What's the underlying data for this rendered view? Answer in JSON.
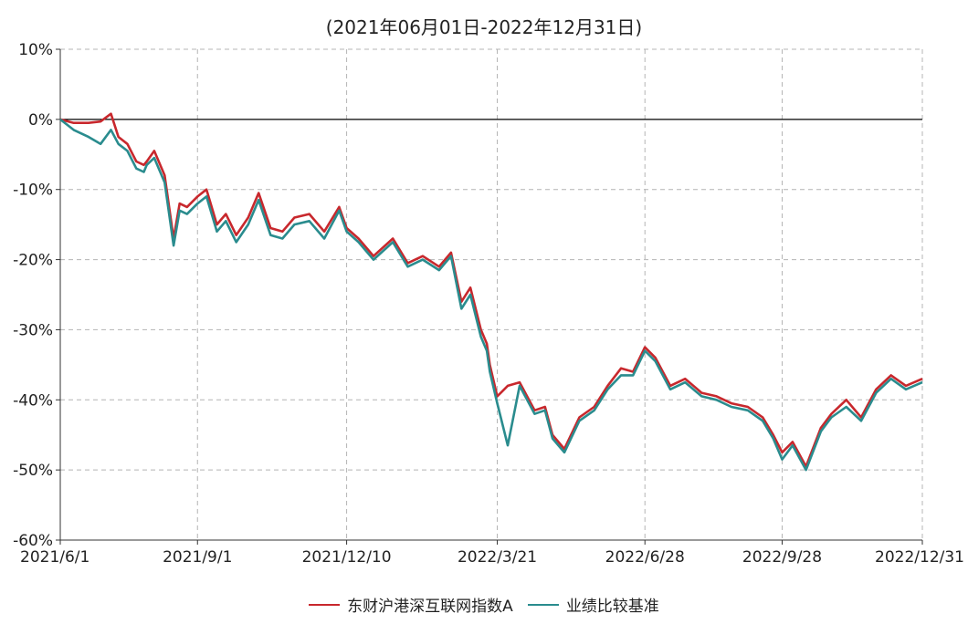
{
  "chart_data": {
    "type": "line",
    "title": "",
    "subtitle": "(2021年06月01日-2022年12月31日)",
    "xlabel": "",
    "ylabel": "",
    "x_ticks": [
      "2021/6/1",
      "2021/9/1",
      "2021/12/10",
      "2022/3/21",
      "2022/6/28",
      "2022/9/28",
      "2022/12/31"
    ],
    "y_ticks": [
      "10%",
      "0%",
      "-10%",
      "-20%",
      "-30%",
      "-40%",
      "-50%",
      "-60%"
    ],
    "ylim": [
      -60,
      10
    ],
    "grid": true,
    "legend_position": "bottom-center",
    "series": [
      {
        "name": "东财沪港深互联网指数A",
        "color": "#c8282d",
        "x": [
          "2021-06-01",
          "2021-06-10",
          "2021-06-20",
          "2021-06-28",
          "2021-07-05",
          "2021-07-10",
          "2021-07-16",
          "2021-07-22",
          "2021-07-27",
          "2021-07-29",
          "2021-08-03",
          "2021-08-10",
          "2021-08-16",
          "2021-08-20",
          "2021-08-25",
          "2021-09-01",
          "2021-09-07",
          "2021-09-14",
          "2021-09-20",
          "2021-09-27",
          "2021-10-05",
          "2021-10-12",
          "2021-10-20",
          "2021-10-28",
          "2021-11-05",
          "2021-11-15",
          "2021-11-25",
          "2021-12-05",
          "2021-12-10",
          "2021-12-18",
          "2021-12-28",
          "2022-01-10",
          "2022-01-20",
          "2022-01-30",
          "2022-02-10",
          "2022-02-18",
          "2022-02-25",
          "2022-03-03",
          "2022-03-10",
          "2022-03-14",
          "2022-03-16",
          "2022-03-21",
          "2022-03-28",
          "2022-04-05",
          "2022-04-15",
          "2022-04-22",
          "2022-04-27",
          "2022-05-05",
          "2022-05-15",
          "2022-05-25",
          "2022-06-03",
          "2022-06-12",
          "2022-06-20",
          "2022-06-28",
          "2022-07-05",
          "2022-07-15",
          "2022-07-25",
          "2022-08-05",
          "2022-08-15",
          "2022-08-25",
          "2022-09-05",
          "2022-09-15",
          "2022-09-22",
          "2022-09-28",
          "2022-10-05",
          "2022-10-14",
          "2022-10-24",
          "2022-10-31",
          "2022-11-10",
          "2022-11-20",
          "2022-11-30",
          "2022-12-10",
          "2022-12-20",
          "2022-12-31"
        ],
        "values": [
          0,
          -0.5,
          -0.5,
          -0.3,
          0.8,
          -2.5,
          -3.5,
          -6,
          -6.5,
          -6,
          -4.5,
          -8,
          -17,
          -12,
          -12.5,
          -11,
          -10,
          -15,
          -13.5,
          -16.5,
          -14,
          -10.5,
          -15.5,
          -16,
          -14,
          -13.5,
          -16,
          -12.5,
          -15.5,
          -17,
          -19.5,
          -17,
          -20.5,
          -19.5,
          -21,
          -19,
          -26,
          -24,
          -30,
          -32,
          -35,
          -39.5,
          -38,
          -37.5,
          -41.5,
          -41,
          -45,
          -47,
          -42.5,
          -41,
          -38,
          -35.5,
          -36,
          -32.5,
          -34,
          -38,
          -37,
          -39,
          -39.5,
          -40.5,
          -41,
          -42.5,
          -45,
          -47.5,
          -46,
          -49.5,
          -44,
          -42,
          -40,
          -42.5,
          -38.5,
          -36.5,
          -38,
          -37
        ]
      },
      {
        "name": "业绩比较基准",
        "color": "#2a8c8e",
        "x": [
          "2021-06-01",
          "2021-06-10",
          "2021-06-20",
          "2021-06-28",
          "2021-07-05",
          "2021-07-10",
          "2021-07-16",
          "2021-07-22",
          "2021-07-27",
          "2021-07-29",
          "2021-08-03",
          "2021-08-10",
          "2021-08-16",
          "2021-08-20",
          "2021-08-25",
          "2021-09-01",
          "2021-09-07",
          "2021-09-14",
          "2021-09-20",
          "2021-09-27",
          "2021-10-05",
          "2021-10-12",
          "2021-10-20",
          "2021-10-28",
          "2021-11-05",
          "2021-11-15",
          "2021-11-25",
          "2021-12-05",
          "2021-12-10",
          "2021-12-18",
          "2021-12-28",
          "2022-01-10",
          "2022-01-20",
          "2022-01-30",
          "2022-02-10",
          "2022-02-18",
          "2022-02-25",
          "2022-03-03",
          "2022-03-10",
          "2022-03-14",
          "2022-03-16",
          "2022-03-21",
          "2022-03-28",
          "2022-04-05",
          "2022-04-15",
          "2022-04-22",
          "2022-04-27",
          "2022-05-05",
          "2022-05-15",
          "2022-05-25",
          "2022-06-03",
          "2022-06-12",
          "2022-06-20",
          "2022-06-28",
          "2022-07-05",
          "2022-07-15",
          "2022-07-25",
          "2022-08-05",
          "2022-08-15",
          "2022-08-25",
          "2022-09-05",
          "2022-09-15",
          "2022-09-22",
          "2022-09-28",
          "2022-10-05",
          "2022-10-14",
          "2022-10-24",
          "2022-10-31",
          "2022-11-10",
          "2022-11-20",
          "2022-11-30",
          "2022-12-10",
          "2022-12-20",
          "2022-12-31"
        ],
        "values": [
          0,
          -1.5,
          -2.5,
          -3.5,
          -1.5,
          -3.5,
          -4.5,
          -7,
          -7.5,
          -6.5,
          -5.5,
          -9,
          -18,
          -13,
          -13.5,
          -12,
          -11,
          -16,
          -14.5,
          -17.5,
          -15,
          -11.5,
          -16.5,
          -17,
          -15,
          -14.5,
          -17,
          -13,
          -16,
          -17.5,
          -20,
          -17.5,
          -21,
          -20,
          -21.5,
          -19.5,
          -27,
          -25,
          -31,
          -33,
          -36,
          -40.5,
          -46.5,
          -38,
          -42,
          -41.5,
          -45.5,
          -47.5,
          -43,
          -41.5,
          -38.5,
          -36.5,
          -36.5,
          -33,
          -34.5,
          -38.5,
          -37.5,
          -39.5,
          -40,
          -41,
          -41.5,
          -43,
          -45.5,
          -48.5,
          -46.5,
          -50,
          -44.5,
          -42.5,
          -41,
          -43,
          -39,
          -37,
          -38.5,
          -37.5
        ]
      }
    ]
  }
}
